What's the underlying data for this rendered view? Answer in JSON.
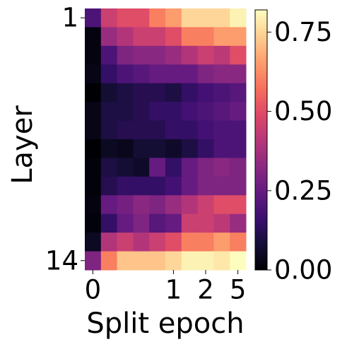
{
  "chart_data": {
    "type": "heatmap",
    "xlabel": "Split epoch",
    "ylabel": "Layer",
    "categories": [
      "0",
      null,
      null,
      null,
      null,
      "1",
      null,
      "2",
      null,
      "5"
    ],
    "rows": [
      "1",
      null,
      null,
      null,
      null,
      null,
      null,
      null,
      null,
      null,
      null,
      null,
      null,
      "14"
    ],
    "colormap": "magma",
    "vlim": [
      0,
      0.82
    ],
    "cticks": [
      {
        "value": 0,
        "label": "0.00"
      },
      {
        "value": 0.25,
        "label": "0.25"
      },
      {
        "value": 0.5,
        "label": "0.50"
      },
      {
        "value": 0.75,
        "label": "0.75"
      }
    ],
    "values": [
      [
        0.2,
        0.45,
        0.5,
        0.5,
        0.6,
        0.65,
        0.75,
        0.75,
        0.75,
        0.8
      ],
      [
        0.02,
        0.35,
        0.4,
        0.45,
        0.45,
        0.5,
        0.6,
        0.6,
        0.65,
        0.65
      ],
      [
        0.02,
        0.2,
        0.3,
        0.32,
        0.32,
        0.35,
        0.4,
        0.45,
        0.42,
        0.5
      ],
      [
        0.03,
        0.15,
        0.2,
        0.22,
        0.25,
        0.25,
        0.25,
        0.3,
        0.32,
        0.32
      ],
      [
        0.0,
        0.08,
        0.1,
        0.12,
        0.12,
        0.1,
        0.15,
        0.18,
        0.2,
        0.22
      ],
      [
        0.03,
        0.1,
        0.1,
        0.12,
        0.15,
        0.15,
        0.18,
        0.2,
        0.22,
        0.25
      ],
      [
        0.03,
        0.1,
        0.12,
        0.12,
        0.12,
        0.15,
        0.15,
        0.18,
        0.2,
        0.2
      ],
      [
        0.0,
        0.05,
        0.04,
        0.08,
        0.08,
        0.06,
        0.1,
        0.15,
        0.2,
        0.2
      ],
      [
        0.01,
        0.1,
        0.08,
        0.06,
        0.25,
        0.15,
        0.25,
        0.3,
        0.32,
        0.3
      ],
      [
        0.01,
        0.12,
        0.15,
        0.15,
        0.15,
        0.18,
        0.25,
        0.3,
        0.3,
        0.3
      ],
      [
        0.02,
        0.25,
        0.28,
        0.32,
        0.3,
        0.35,
        0.4,
        0.45,
        0.5,
        0.5
      ],
      [
        0.01,
        0.15,
        0.25,
        0.3,
        0.22,
        0.25,
        0.45,
        0.45,
        0.42,
        0.35
      ],
      [
        0.05,
        0.4,
        0.45,
        0.4,
        0.45,
        0.5,
        0.6,
        0.6,
        0.65,
        0.6
      ],
      [
        0.3,
        0.6,
        0.72,
        0.72,
        0.72,
        0.75,
        0.8,
        0.8,
        0.78,
        0.82
      ]
    ]
  }
}
